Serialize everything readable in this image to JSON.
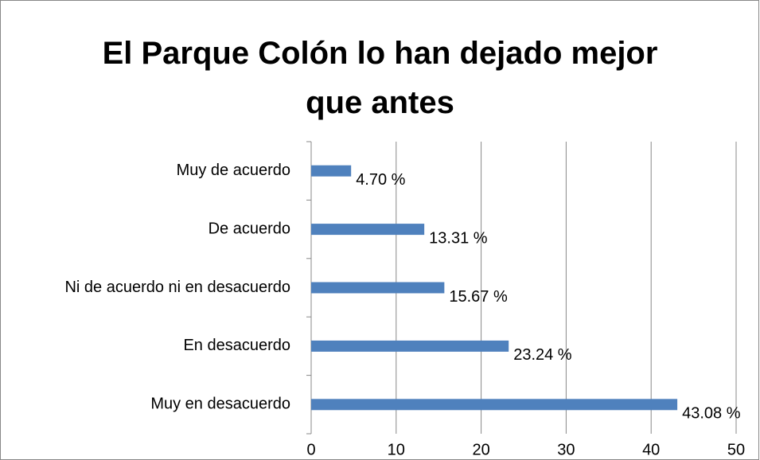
{
  "chart_data": {
    "type": "barh",
    "title": "El Parque Colón lo han dejado mejor que antes",
    "categories": [
      "Muy de acuerdo",
      "De acuerdo",
      "Ni de acuerdo ni en desacuerdo",
      "En desacuerdo",
      "Muy en desacuerdo"
    ],
    "values": [
      4.7,
      13.31,
      15.67,
      23.24,
      43.08
    ],
    "value_labels": [
      "4.70 %",
      "13.31 %",
      "15.67 %",
      "23.24 %",
      "43.08 %"
    ],
    "color": "#4f81bd",
    "xlim": [
      0,
      50
    ],
    "xticks": [
      0,
      10,
      20,
      30,
      40,
      50
    ],
    "grid": true
  }
}
